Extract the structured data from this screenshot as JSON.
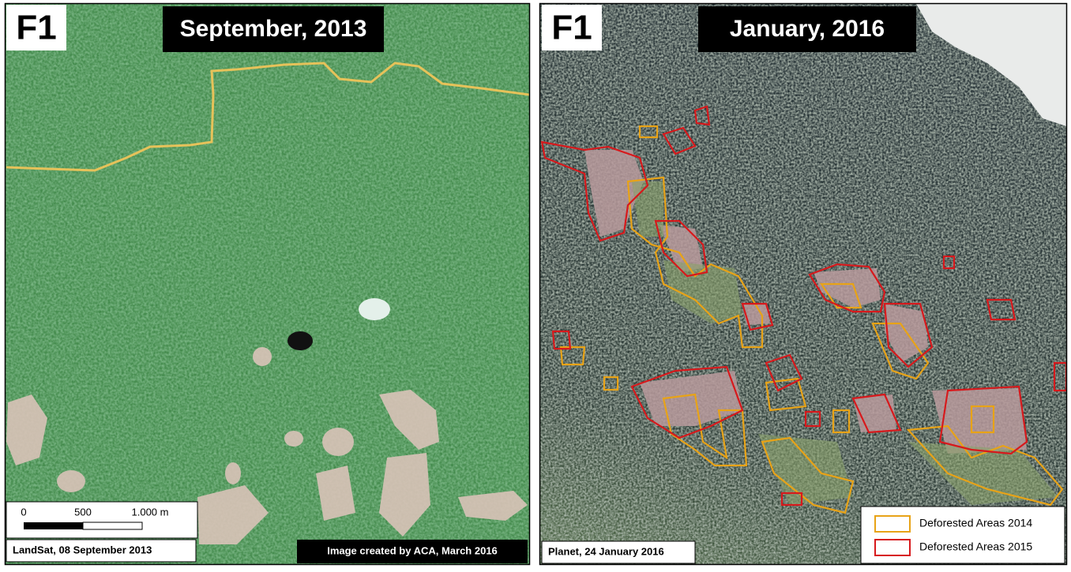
{
  "panels": [
    {
      "label": "F1",
      "title": "September, 2013",
      "caption": "LandSat, 08 September 2013",
      "credit": "Image created by ACA, March 2016",
      "scale_bar": {
        "labels": [
          "0",
          "500",
          "1.000 m"
        ]
      }
    },
    {
      "label": "F1",
      "title": "January, 2016",
      "caption": "Planet, 24 January 2016",
      "legend": [
        {
          "label": "Deforested Areas 2014",
          "color": "#e8a317"
        },
        {
          "label": "Deforested Areas 2015",
          "color": "#d7191c"
        }
      ]
    }
  ]
}
